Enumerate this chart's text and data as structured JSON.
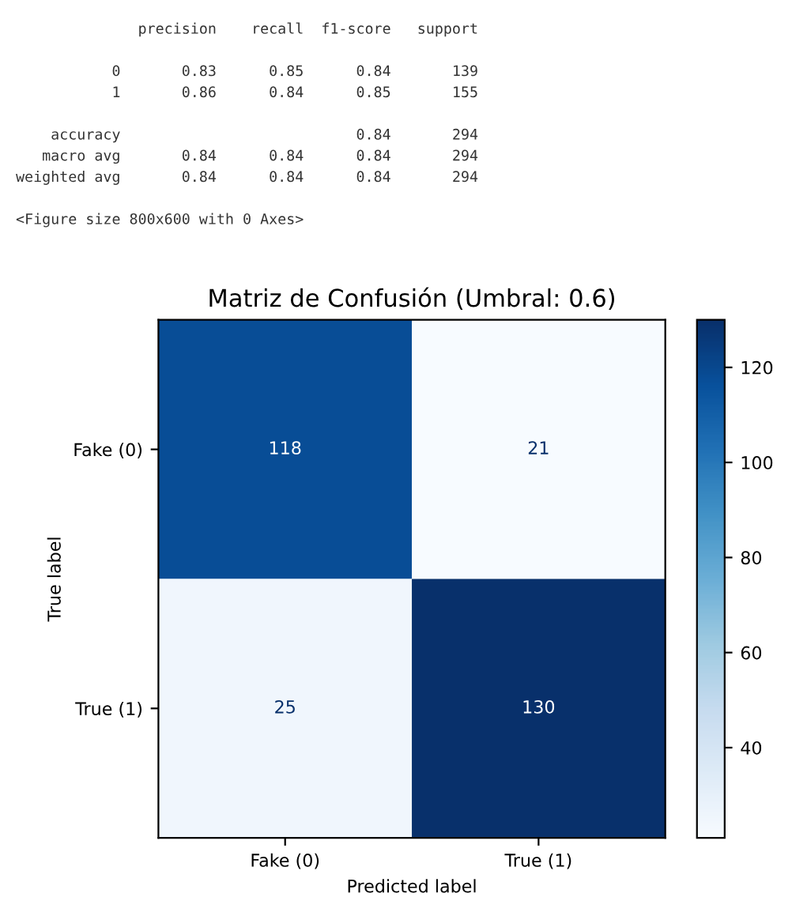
{
  "chart_data": {
    "type": "heatmap",
    "title": "Matriz de Confusión (Umbral: 0.6)",
    "xlabel": "Predicted label",
    "ylabel": "True label",
    "categories": [
      "Fake (0)",
      "True (1)"
    ],
    "y_categories": [
      "Fake (0)",
      "True (1)"
    ],
    "cells": [
      [
        118,
        21
      ],
      [
        25,
        130
      ]
    ],
    "data_labels": true,
    "clim": [
      21,
      130
    ],
    "cticks": [
      40,
      60,
      80,
      100,
      120
    ],
    "grid": false,
    "annotations": [
      "              precision    recall  f1-score   support",
      "           0       0.83      0.85      0.84       139",
      "           1       0.86      0.84      0.85       155",
      "    accuracy                           0.84       294",
      "   macro avg       0.84      0.84      0.84       294",
      "weighted avg       0.84      0.84      0.84       294",
      "<Figure size 800x600 with 0 Axes>"
    ]
  }
}
